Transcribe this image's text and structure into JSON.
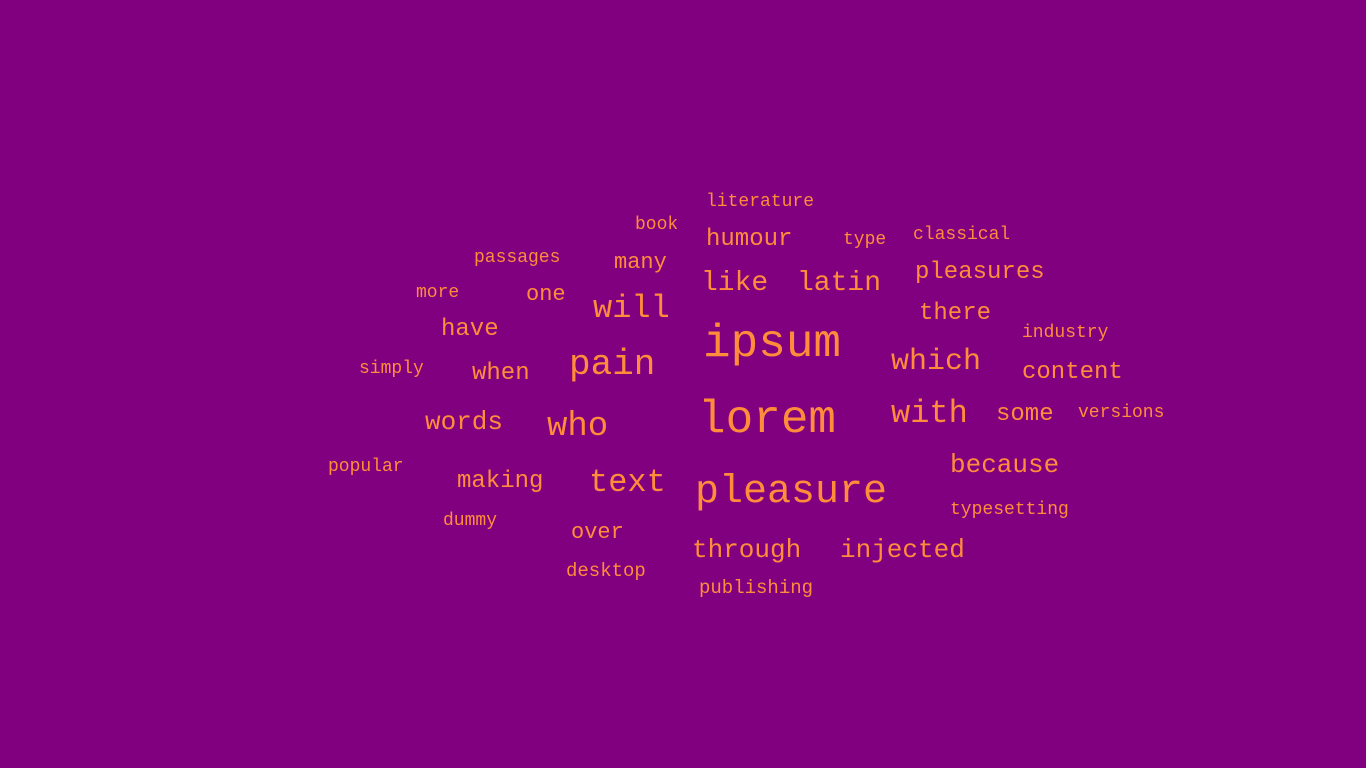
{
  "colors": {
    "background": "#800080",
    "text": "#ff8c3a"
  },
  "words": [
    "literature",
    "book",
    "humour",
    "type",
    "classical",
    "passages",
    "many",
    "like",
    "latin",
    "pleasures",
    "more",
    "one",
    "will",
    "there",
    "have",
    "ipsum",
    "industry",
    "simply",
    "when",
    "pain",
    "which",
    "content",
    "words",
    "who",
    "lorem",
    "with",
    "some",
    "versions",
    "popular",
    "because",
    "making",
    "text",
    "pleasure",
    "typesetting",
    "dummy",
    "over",
    "through",
    "injected",
    "desktop",
    "publishing"
  ]
}
